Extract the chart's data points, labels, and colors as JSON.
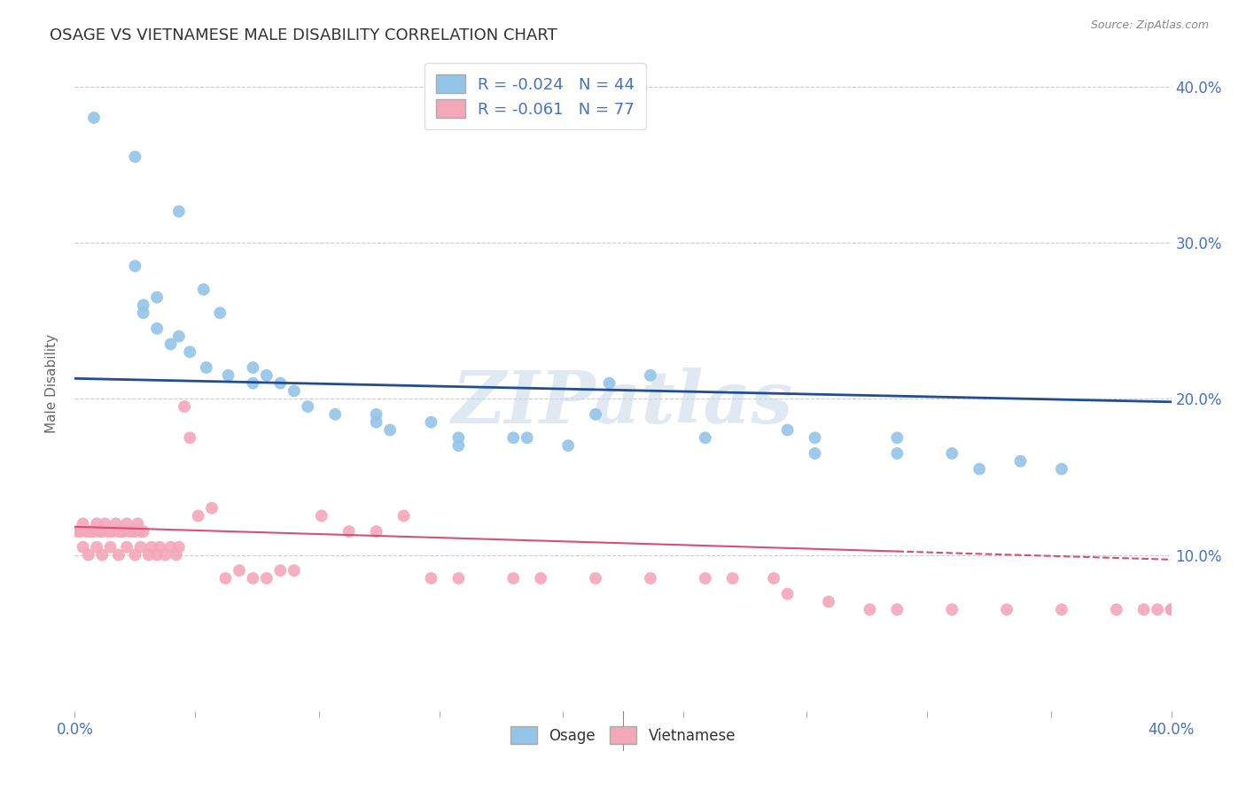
{
  "title": "OSAGE VS VIETNAMESE MALE DISABILITY CORRELATION CHART",
  "source": "Source: ZipAtlas.com",
  "ylabel": "Male Disability",
  "xlim": [
    0.0,
    0.4
  ],
  "ylim": [
    0.0,
    0.42
  ],
  "yticks": [
    0.1,
    0.2,
    0.3,
    0.4
  ],
  "ytick_labels": [
    "10.0%",
    "20.0%",
    "30.0%",
    "40.0%"
  ],
  "xticks": [
    0.0,
    0.044,
    0.089,
    0.133,
    0.178,
    0.222,
    0.267,
    0.311,
    0.356,
    0.4
  ],
  "xtick_labels_show": {
    "0.0": "0.0%",
    "0.40": "40.0%"
  },
  "osage_color": "#92C5E8",
  "vietnamese_color": "#F4A7B9",
  "osage_trend_color": "#1F4E96",
  "vietnamese_trend_color": "#D94F70",
  "R_osage": -0.024,
  "N_osage": 44,
  "R_vietnamese": -0.061,
  "N_vietnamese": 77,
  "watermark": "ZIPatlas",
  "background_color": "#FFFFFF",
  "grid_color": "#CCCCCC",
  "title_color": "#333333",
  "axis_label_color": "#4472C4",
  "legend_text_color": "#4472C4",
  "osage_trend_start_y": 0.213,
  "osage_trend_end_y": 0.198,
  "viet_trend_start_y": 0.118,
  "viet_trend_end_y": 0.097,
  "osage_x": [
    0.007,
    0.022,
    0.038,
    0.022,
    0.047,
    0.03,
    0.025,
    0.053,
    0.025,
    0.03,
    0.038,
    0.035,
    0.042,
    0.048,
    0.056,
    0.065,
    0.07,
    0.065,
    0.075,
    0.08,
    0.085,
    0.095,
    0.11,
    0.11,
    0.115,
    0.13,
    0.14,
    0.14,
    0.16,
    0.165,
    0.18,
    0.195,
    0.19,
    0.21,
    0.23,
    0.26,
    0.27,
    0.27,
    0.3,
    0.3,
    0.32,
    0.33,
    0.345,
    0.36
  ],
  "osage_y": [
    0.38,
    0.355,
    0.32,
    0.285,
    0.27,
    0.265,
    0.26,
    0.255,
    0.255,
    0.245,
    0.24,
    0.235,
    0.23,
    0.22,
    0.215,
    0.22,
    0.215,
    0.21,
    0.21,
    0.205,
    0.195,
    0.19,
    0.19,
    0.185,
    0.18,
    0.185,
    0.175,
    0.17,
    0.175,
    0.175,
    0.17,
    0.21,
    0.19,
    0.215,
    0.175,
    0.18,
    0.175,
    0.165,
    0.175,
    0.165,
    0.165,
    0.155,
    0.16,
    0.155
  ],
  "vietnamese_x": [
    0.001,
    0.002,
    0.003,
    0.004,
    0.005,
    0.006,
    0.007,
    0.008,
    0.009,
    0.01,
    0.011,
    0.012,
    0.013,
    0.014,
    0.015,
    0.016,
    0.017,
    0.018,
    0.019,
    0.02,
    0.021,
    0.022,
    0.023,
    0.024,
    0.025,
    0.003,
    0.005,
    0.008,
    0.01,
    0.013,
    0.016,
    0.019,
    0.022,
    0.024,
    0.027,
    0.028,
    0.03,
    0.031,
    0.033,
    0.035,
    0.037,
    0.038,
    0.04,
    0.042,
    0.045,
    0.05,
    0.055,
    0.06,
    0.065,
    0.07,
    0.075,
    0.08,
    0.09,
    0.1,
    0.11,
    0.12,
    0.13,
    0.14,
    0.16,
    0.17,
    0.19,
    0.21,
    0.23,
    0.24,
    0.255,
    0.26,
    0.275,
    0.29,
    0.3,
    0.32,
    0.34,
    0.36,
    0.38,
    0.39,
    0.395,
    0.4,
    0.4
  ],
  "vietnamese_y": [
    0.115,
    0.115,
    0.12,
    0.115,
    0.115,
    0.115,
    0.115,
    0.12,
    0.115,
    0.115,
    0.12,
    0.115,
    0.115,
    0.115,
    0.12,
    0.115,
    0.115,
    0.115,
    0.12,
    0.115,
    0.115,
    0.115,
    0.12,
    0.115,
    0.115,
    0.105,
    0.1,
    0.105,
    0.1,
    0.105,
    0.1,
    0.105,
    0.1,
    0.105,
    0.1,
    0.105,
    0.1,
    0.105,
    0.1,
    0.105,
    0.1,
    0.105,
    0.195,
    0.175,
    0.125,
    0.13,
    0.085,
    0.09,
    0.085,
    0.085,
    0.09,
    0.09,
    0.125,
    0.115,
    0.115,
    0.125,
    0.085,
    0.085,
    0.085,
    0.085,
    0.085,
    0.085,
    0.085,
    0.085,
    0.085,
    0.075,
    0.07,
    0.065,
    0.065,
    0.065,
    0.065,
    0.065,
    0.065,
    0.065,
    0.065,
    0.065,
    0.065
  ]
}
